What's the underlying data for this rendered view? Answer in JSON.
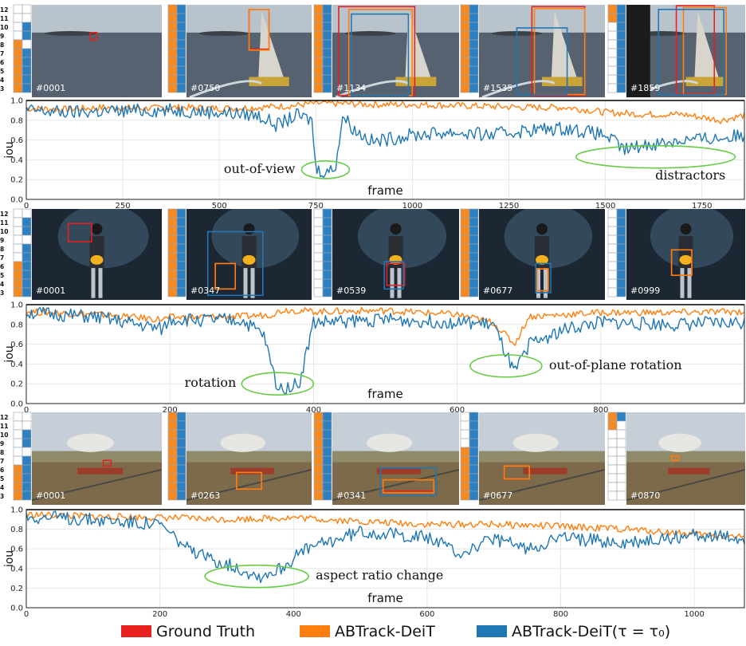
{
  "colors": {
    "ground_truth": "#e8211f",
    "abtrack": "#ff7f0e",
    "abtrack_tau": "#1f77b4",
    "ellipse": "#66cc44",
    "orange_cell": "#f58a23",
    "blue_cell": "#2f80c0"
  },
  "legend": [
    {
      "label": "Ground Truth",
      "color": "#e8211f"
    },
    {
      "label": "ABTrack-DeiT",
      "color": "#ff7f0e"
    },
    {
      "label": "ABTrack-DeiT(τ = τ₀)",
      "color": "#1f77b4"
    }
  ],
  "panels": [
    {
      "scene": "sailboat",
      "frames": [
        "#0001",
        "#0750",
        "#1134",
        "#1535",
        "#1859"
      ],
      "row_labels": [
        "12",
        "11",
        "10",
        "9",
        "8",
        "7",
        "6",
        "5",
        "4",
        "3"
      ],
      "strip_patterns": [
        {
          "left": "wwwwoooooo",
          "right": "wwbbwbbbbb"
        },
        {
          "left": "oooooooooo",
          "right": "bbbbbbbbbb"
        },
        {
          "left": "oooooooooo",
          "right": "bbbbbbbbbb"
        },
        {
          "left": "oooooooooo",
          "right": "bbbbbbbbbb"
        },
        {
          "left": "oowwwwwwww",
          "right": "bbbbbbbbbb"
        }
      ],
      "annotations": [
        {
          "text": "out-of-view",
          "x": 760
        },
        {
          "text": "distractors",
          "x": 1590
        }
      ]
    },
    {
      "scene": "guitar",
      "frames": [
        "#0001",
        "#0347",
        "#0539",
        "#0677",
        "#0999"
      ],
      "row_labels": [
        "12",
        "11",
        "10",
        "9",
        "8",
        "7",
        "6",
        "5",
        "4",
        "3"
      ],
      "strip_patterns": [
        {
          "left": "wwwwwwoooo",
          "right": "wbbwbbbbbb"
        },
        {
          "left": "oooooooooo",
          "right": "bbbbbbbbbb"
        },
        {
          "left": "wwwwwwwwww",
          "right": "bbbbbbbbbb"
        },
        {
          "left": "oooooooooo",
          "right": "bbbbbbbbbb"
        },
        {
          "left": "wwwwwwwwww",
          "right": "bbbbbbbbbb"
        }
      ],
      "annotations": [
        {
          "text": "rotation",
          "x": 355
        },
        {
          "text": "out-of-plane rotation",
          "x": 680
        }
      ]
    },
    {
      "scene": "train",
      "frames": [
        "#0001",
        "#0263",
        "#0341",
        "#0677",
        "#0870"
      ],
      "row_labels": [
        "12",
        "11",
        "10",
        "9",
        "8",
        "7",
        "6",
        "5",
        "4",
        "3"
      ],
      "strip_patterns": [
        {
          "left": "wwwwwwoooo",
          "right": "wwbbwbbbbb"
        },
        {
          "left": "oooooooooo",
          "right": "bbbbbbbbbb"
        },
        {
          "left": "oooooooooo",
          "right": "bbbbbbbbbb"
        },
        {
          "left": "wwwwoooooo",
          "right": "bbbbbbbbbb"
        },
        {
          "left": "oowwwwwwww",
          "right": "bwwwwwwwww"
        }
      ],
      "annotations": [
        {
          "text": "aspect ratio change",
          "x": 350
        }
      ]
    }
  ],
  "chart_data": [
    {
      "type": "line",
      "xlabel": "frame",
      "ylabel": "iou",
      "xlim": [
        0,
        1860
      ],
      "ylim": [
        0.0,
        1.0
      ],
      "xticks": [
        0,
        250,
        500,
        750,
        1000,
        1250,
        1500,
        1750
      ],
      "yticks": [
        0.0,
        0.2,
        0.4,
        0.6,
        0.8,
        1.0
      ],
      "grid": true,
      "series": [
        {
          "name": "ABTrack-DeiT",
          "x": [
            0,
            100,
            200,
            300,
            400,
            500,
            600,
            700,
            740,
            760,
            800,
            900,
            1000,
            1100,
            1200,
            1300,
            1400,
            1500,
            1600,
            1700,
            1800,
            1860
          ],
          "y": [
            0.92,
            0.91,
            0.93,
            0.92,
            0.93,
            0.92,
            0.93,
            0.95,
            0.97,
            0.97,
            0.97,
            0.96,
            0.96,
            0.95,
            0.94,
            0.93,
            0.93,
            0.88,
            0.86,
            0.86,
            0.8,
            0.85
          ]
        },
        {
          "name": "ABTrack-DeiT(τ = τ₀)",
          "x": [
            0,
            100,
            200,
            300,
            400,
            500,
            600,
            650,
            700,
            740,
            750,
            780,
            800,
            820,
            850,
            900,
            950,
            1000,
            1100,
            1200,
            1300,
            1400,
            1500,
            1550,
            1600,
            1700,
            1800,
            1860
          ],
          "y": [
            0.9,
            0.88,
            0.89,
            0.9,
            0.9,
            0.88,
            0.85,
            0.75,
            0.85,
            0.8,
            0.3,
            0.28,
            0.32,
            0.85,
            0.7,
            0.58,
            0.62,
            0.65,
            0.68,
            0.65,
            0.7,
            0.72,
            0.65,
            0.5,
            0.55,
            0.6,
            0.62,
            0.65
          ]
        }
      ]
    },
    {
      "type": "line",
      "xlabel": "frame",
      "ylabel": "iou",
      "xlim": [
        0,
        1000
      ],
      "ylim": [
        0.0,
        1.0
      ],
      "xticks": [
        0,
        200,
        400,
        600,
        800
      ],
      "yticks": [
        0.0,
        0.2,
        0.4,
        0.6,
        0.8,
        1.0
      ],
      "grid": true,
      "series": [
        {
          "name": "ABTrack-DeiT",
          "x": [
            0,
            100,
            190,
            200,
            300,
            340,
            360,
            400,
            500,
            600,
            650,
            680,
            700,
            800,
            900,
            1000
          ],
          "y": [
            0.93,
            0.9,
            0.85,
            0.87,
            0.88,
            0.9,
            0.95,
            0.93,
            0.94,
            0.9,
            0.82,
            0.6,
            0.88,
            0.92,
            0.92,
            0.93
          ]
        },
        {
          "name": "ABTrack-DeiT(τ = τ₀)",
          "x": [
            0,
            100,
            190,
            200,
            300,
            330,
            350,
            380,
            400,
            500,
            600,
            650,
            680,
            700,
            750,
            800,
            900,
            1000
          ],
          "y": [
            0.92,
            0.87,
            0.75,
            0.85,
            0.84,
            0.7,
            0.15,
            0.2,
            0.82,
            0.85,
            0.82,
            0.8,
            0.3,
            0.6,
            0.75,
            0.82,
            0.8,
            0.82
          ]
        }
      ]
    },
    {
      "type": "line",
      "xlabel": "frame",
      "ylabel": "iou",
      "xlim": [
        0,
        1075
      ],
      "ylim": [
        0.0,
        1.0
      ],
      "xticks": [
        0,
        200,
        400,
        600,
        800,
        1000
      ],
      "yticks": [
        0.0,
        0.2,
        0.4,
        0.6,
        0.8,
        1.0
      ],
      "grid": true,
      "series": [
        {
          "name": "ABTrack-DeiT",
          "x": [
            0,
            100,
            200,
            300,
            400,
            500,
            600,
            700,
            800,
            900,
            1000,
            1075
          ],
          "y": [
            0.95,
            0.93,
            0.92,
            0.9,
            0.92,
            0.88,
            0.85,
            0.85,
            0.83,
            0.8,
            0.75,
            0.72
          ]
        },
        {
          "name": "ABTrack-DeiT(τ = τ₀)",
          "x": [
            0,
            100,
            200,
            250,
            300,
            350,
            380,
            420,
            500,
            600,
            650,
            700,
            750,
            800,
            900,
            1000,
            1075
          ],
          "y": [
            0.93,
            0.9,
            0.85,
            0.55,
            0.45,
            0.32,
            0.4,
            0.6,
            0.78,
            0.72,
            0.55,
            0.7,
            0.6,
            0.72,
            0.65,
            0.75,
            0.7
          ]
        }
      ]
    }
  ]
}
